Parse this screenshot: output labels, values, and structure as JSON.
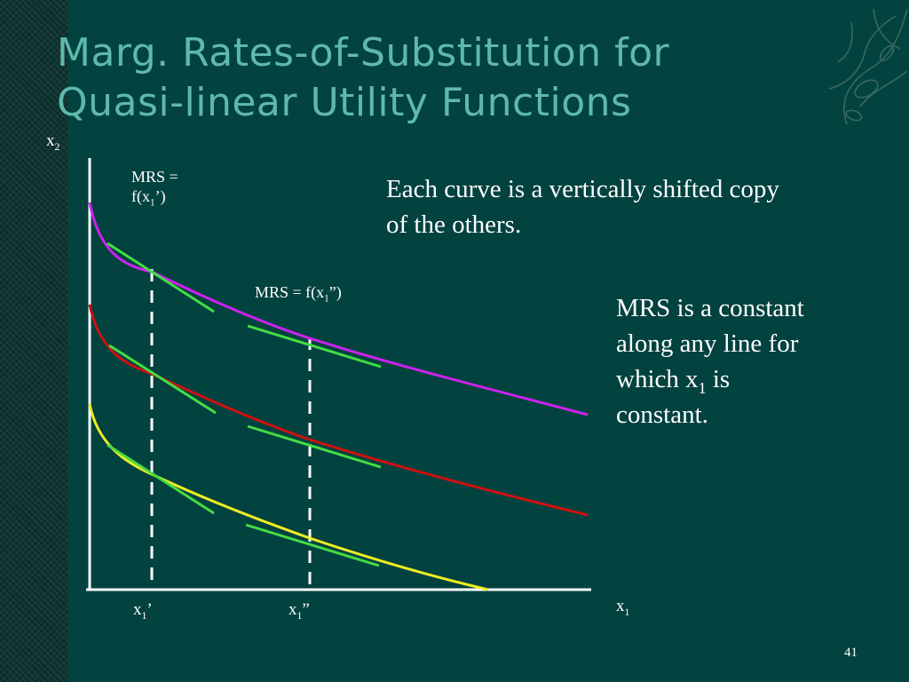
{
  "slide": {
    "title_line1": "Marg. Rates-of-Substitution for",
    "title_line2": "Quasi-linear Utility Functions",
    "page_number": "41"
  },
  "axes": {
    "y_label": "x",
    "y_sub": "2",
    "x_label": "x",
    "x_sub": "1"
  },
  "ticks": {
    "x1_prime": {
      "main": "x",
      "sub": "1",
      "suffix": "’"
    },
    "x1_double_prime": {
      "main": "x",
      "sub": "1",
      "suffix": "”"
    }
  },
  "annotations": {
    "mrs_prime_line1": "MRS =",
    "mrs_prime_line2_pre": "f(x",
    "mrs_prime_line2_sub": "1",
    "mrs_prime_line2_post": "’)",
    "mrs_double_pre": "MRS = f(x",
    "mrs_double_sub": "1",
    "mrs_double_post": "”)"
  },
  "notes": {
    "shifted_line1": "Each curve is a vertically shifted copy",
    "shifted_line2": "of the others.",
    "constant_line1": "MRS is a constant",
    "constant_line2": "along any line for",
    "constant_line3_pre": "which x",
    "constant_line3_sub": "1",
    "constant_line3_post": " is",
    "constant_line4": "constant."
  },
  "colors": {
    "curve_top": "#cc22ee",
    "curve_middle": "#cc1111",
    "curve_bottom": "#eeee22",
    "tangent": "#44dd44",
    "axis": "#ffffff",
    "title": "#5fb8ad"
  }
}
